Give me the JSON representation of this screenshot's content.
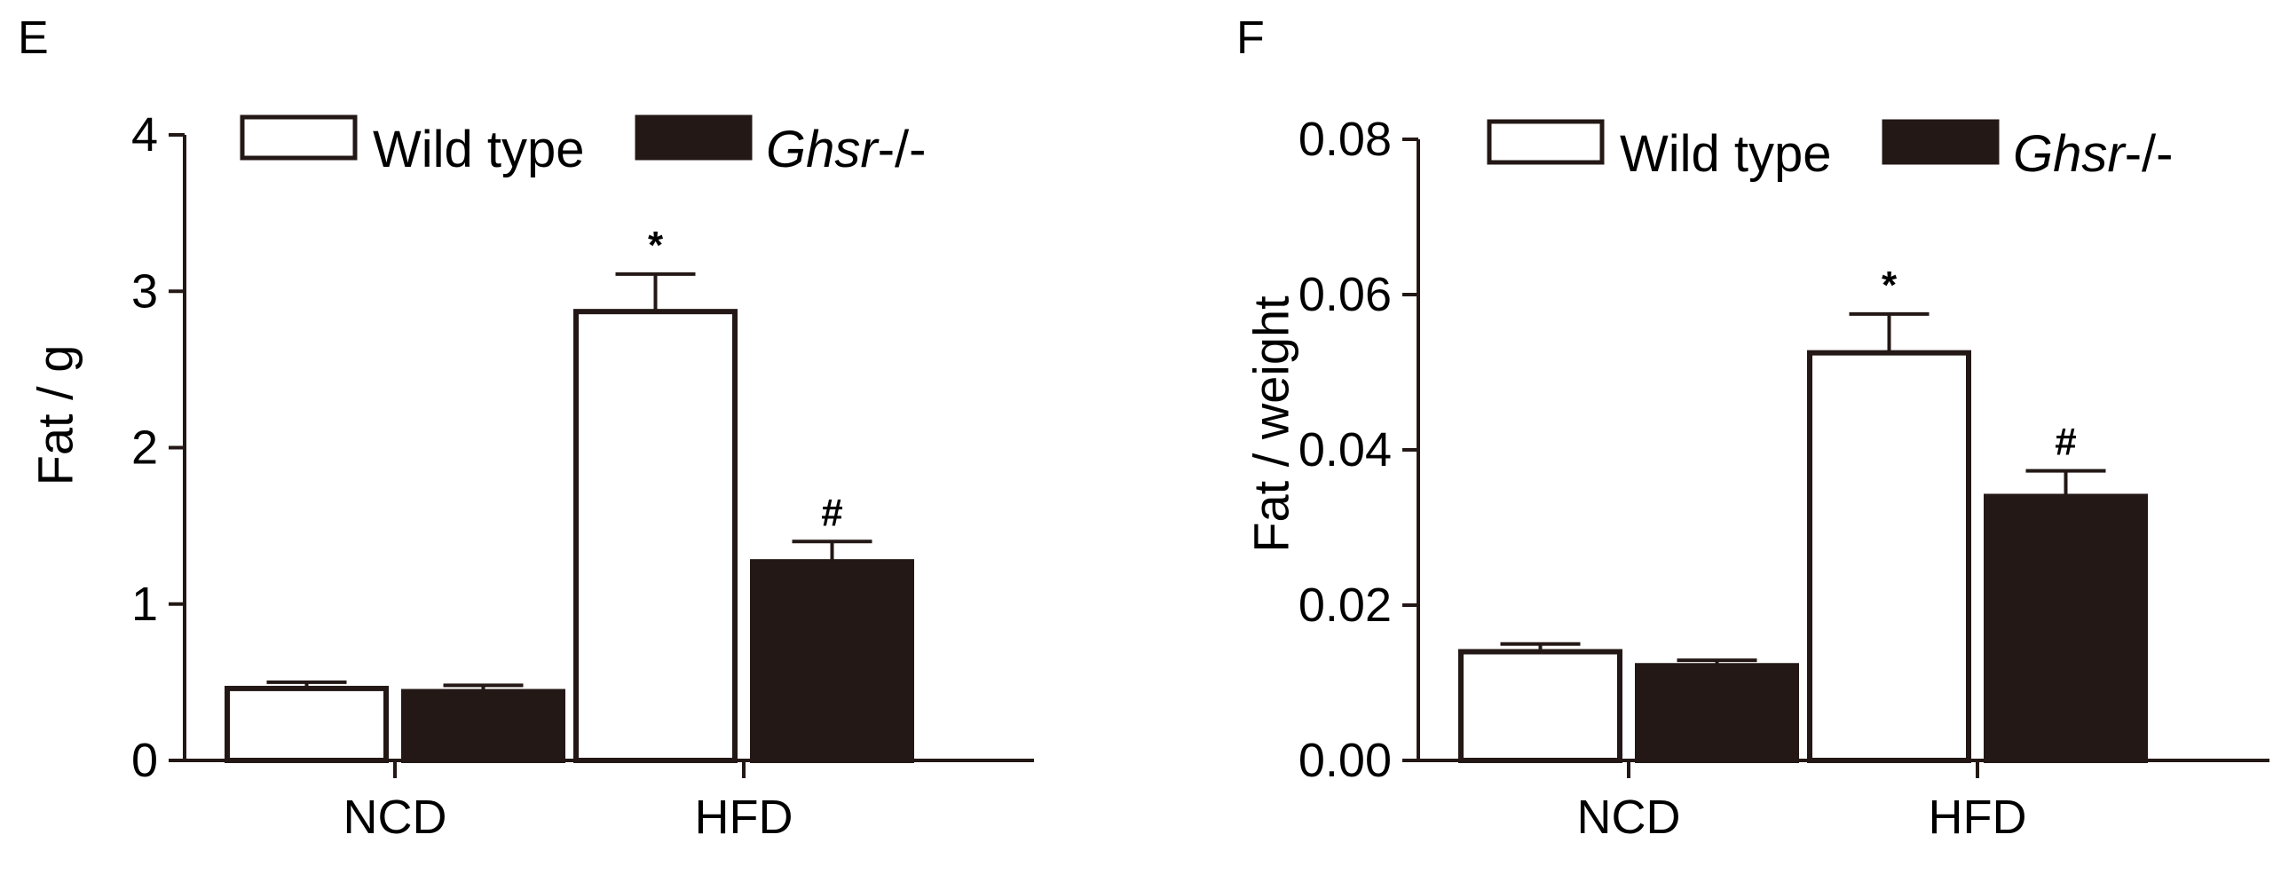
{
  "colors": {
    "axis": "#231815",
    "dark_bar": "#231815",
    "light_bar": "#ffffff"
  },
  "chart_data": [
    {
      "type": "bar",
      "panel_label": "E",
      "title": "",
      "xlabel": "",
      "ylabel": "Fat / g",
      "ylim": [
        0,
        4
      ],
      "yticks": [
        "0",
        "1",
        "2",
        "3",
        "4"
      ],
      "grid": false,
      "legend_position": "top",
      "categories": [
        "NCD",
        "HFD"
      ],
      "series": [
        {
          "name": "Wild type",
          "name_italic": "",
          "name_suffix": "",
          "fill": "#ffffff",
          "values": [
            0.46,
            2.87
          ],
          "errors": [
            0.04,
            0.24
          ],
          "annotations": [
            "",
            "*"
          ]
        },
        {
          "name": "",
          "name_italic": "Ghsr",
          "name_suffix": "-/-",
          "fill": "#231815",
          "values": [
            0.44,
            1.27
          ],
          "errors": [
            0.04,
            0.13
          ],
          "annotations": [
            "",
            "#"
          ]
        }
      ]
    },
    {
      "type": "bar",
      "panel_label": "F",
      "title": "",
      "xlabel": "",
      "ylabel": "Fat / weight",
      "ylim": [
        0,
        0.08
      ],
      "yticks": [
        "0.00",
        "0.02",
        "0.04",
        "0.06",
        "0.08"
      ],
      "grid": false,
      "legend_position": "top",
      "categories": [
        "NCD",
        "HFD"
      ],
      "series": [
        {
          "name": "Wild type",
          "name_italic": "",
          "name_suffix": "",
          "fill": "#ffffff",
          "values": [
            0.014,
            0.0525
          ],
          "errors": [
            0.001,
            0.005
          ],
          "annotations": [
            "",
            "*"
          ]
        },
        {
          "name": "",
          "name_italic": "Ghsr",
          "name_suffix": "-/-",
          "fill": "#231815",
          "values": [
            0.0122,
            0.034
          ],
          "errors": [
            0.0007,
            0.0033
          ],
          "annotations": [
            "",
            "#"
          ]
        }
      ]
    }
  ]
}
